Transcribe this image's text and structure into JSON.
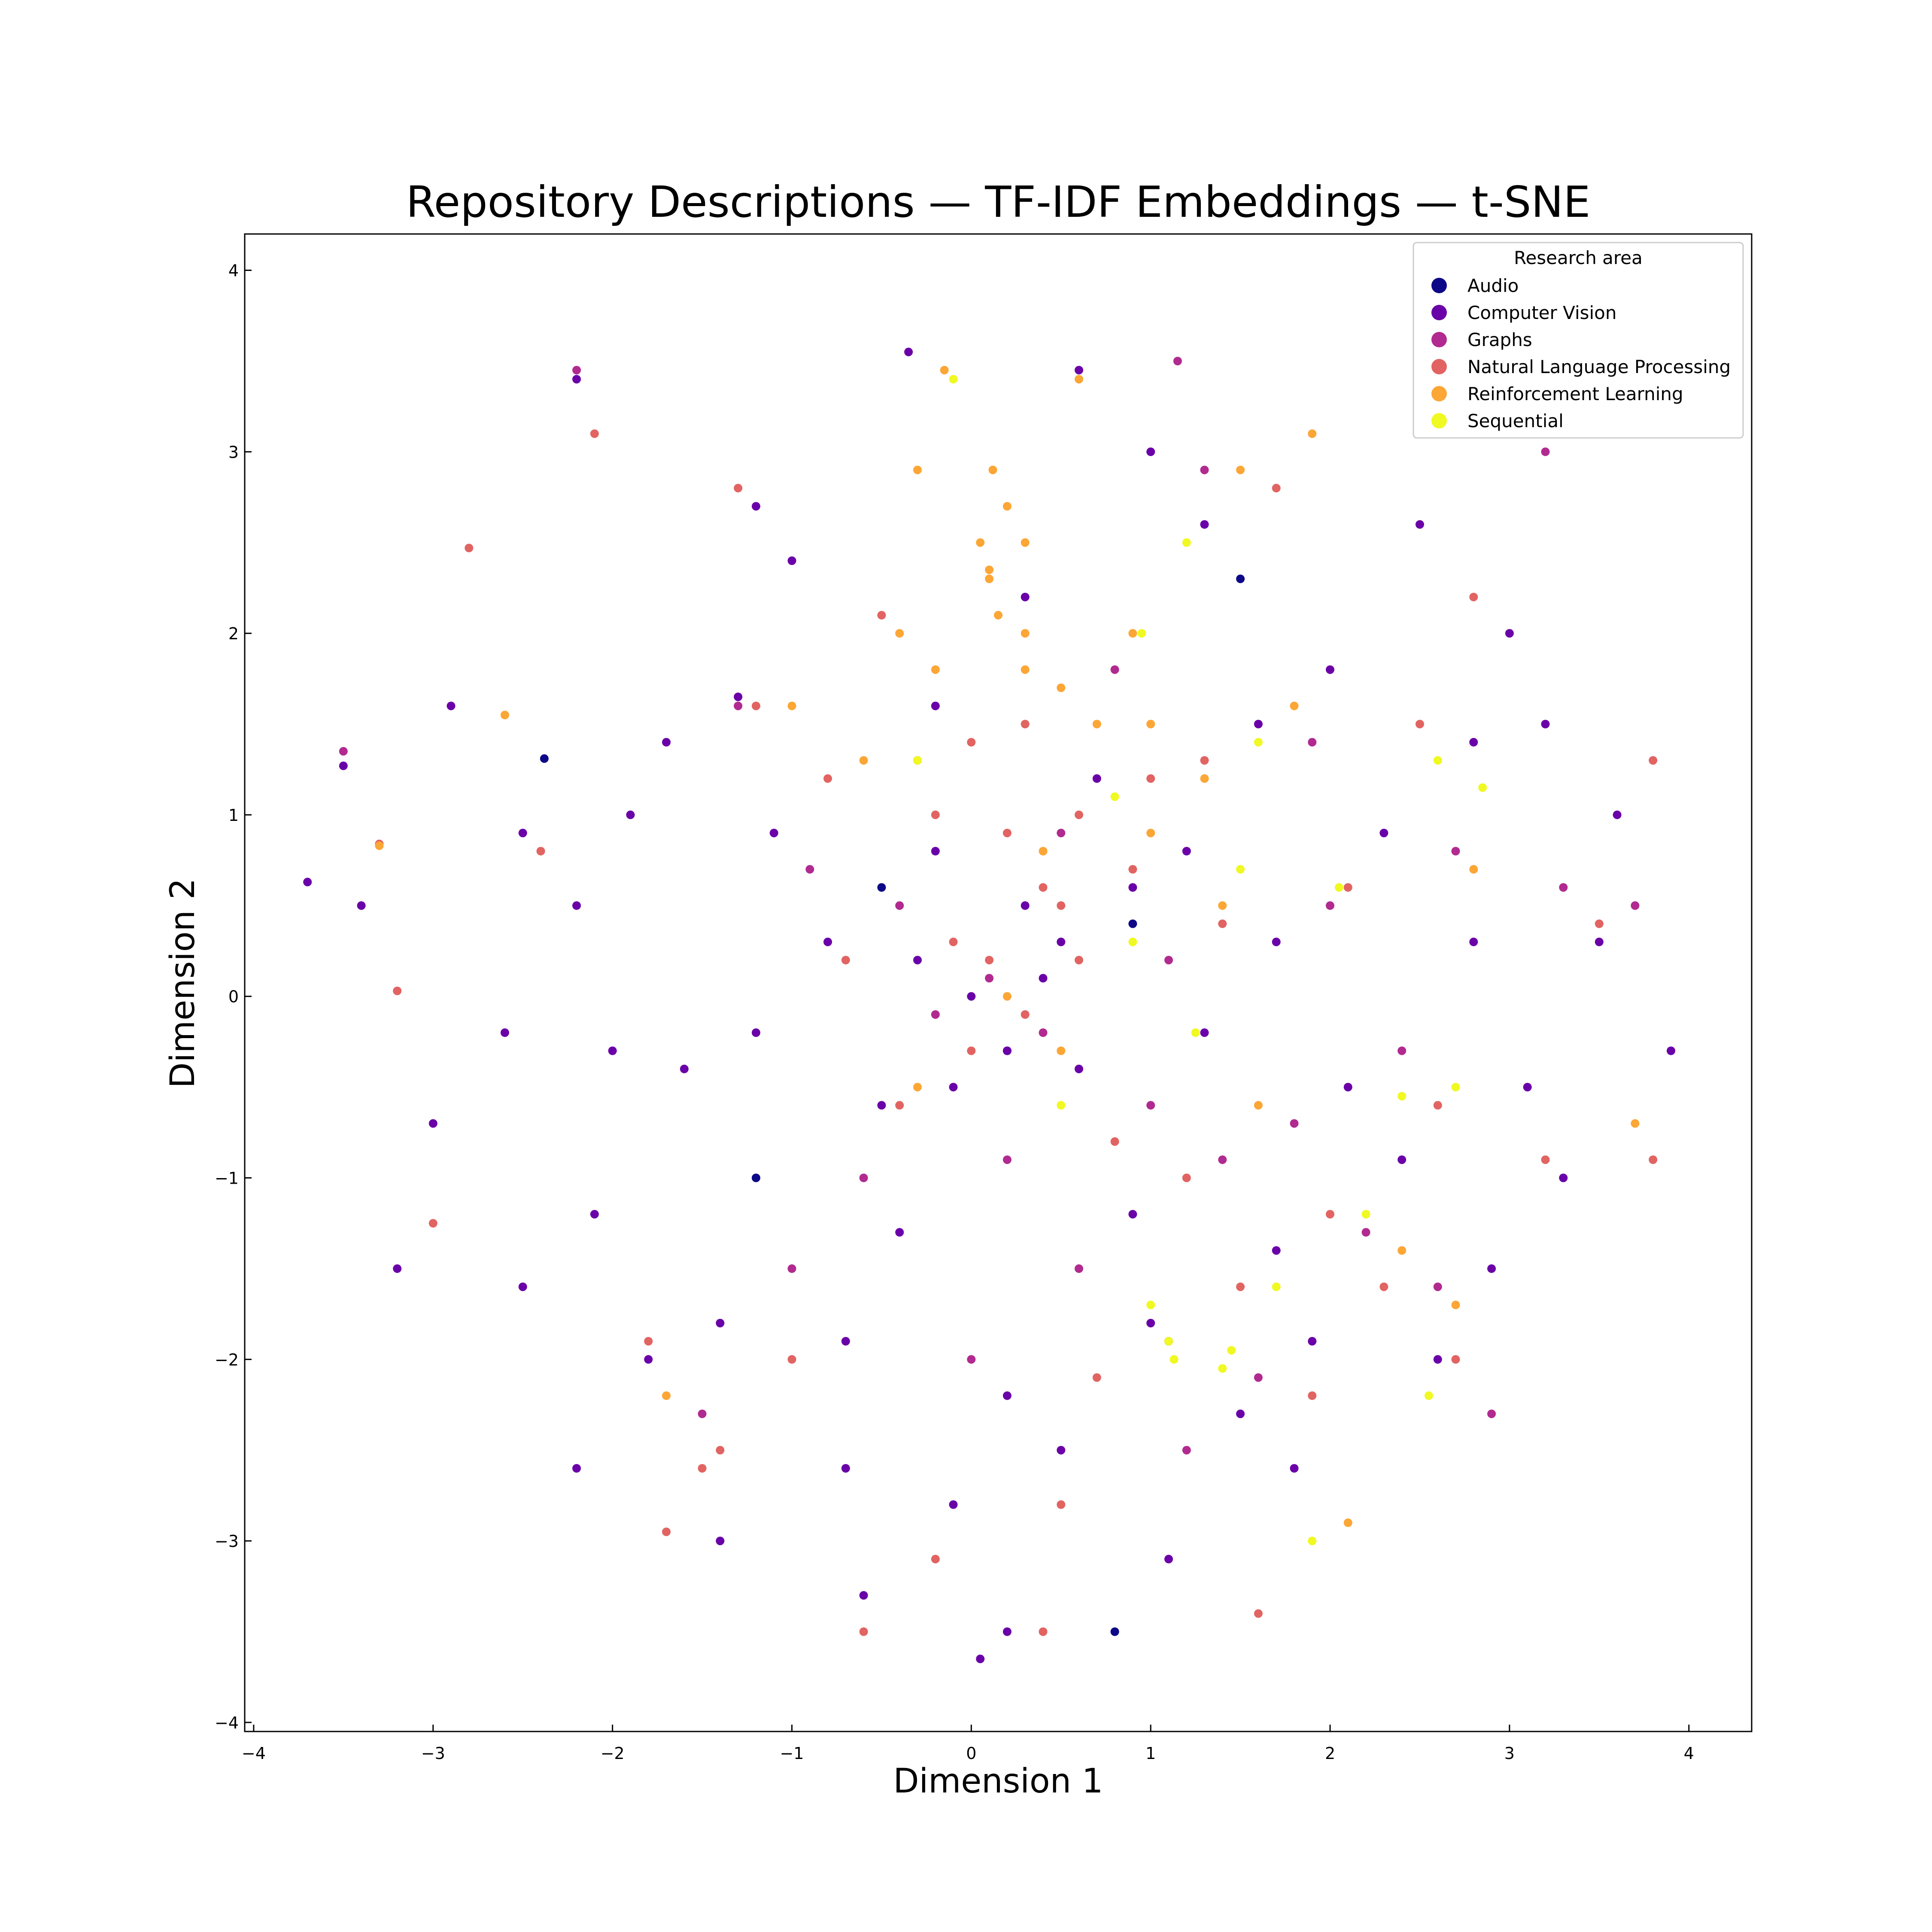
{
  "chart_data": {
    "type": "scatter",
    "title": "Repository Descriptions — TF-IDF Embeddings — t-SNE",
    "xlabel": "Dimension 1",
    "ylabel": "Dimension 2",
    "xlim": [
      -4.05,
      4.35
    ],
    "ylim": [
      -4.05,
      4.2
    ],
    "xticks": [
      -4,
      -3,
      -2,
      -1,
      0,
      1,
      2,
      3,
      4
    ],
    "yticks": [
      -4,
      -3,
      -2,
      -1,
      0,
      1,
      2,
      3,
      4
    ],
    "xtick_labels": [
      "−4",
      "−3",
      "−2",
      "−1",
      "0",
      "1",
      "2",
      "3",
      "4"
    ],
    "ytick_labels": [
      "−4",
      "−3",
      "−2",
      "−1",
      "0",
      "1",
      "2",
      "3",
      "4"
    ],
    "grid": false,
    "legend": {
      "title": "Research area",
      "placement": "top-right"
    },
    "series": [
      {
        "name": "Audio",
        "color": "#0d0887",
        "points": [
          [
            -2.38,
            1.31
          ],
          [
            0.2,
            -0.3
          ],
          [
            0.8,
            -3.5
          ],
          [
            1.1,
            -1.9
          ],
          [
            -0.5,
            0.6
          ],
          [
            0.9,
            0.4
          ],
          [
            1.5,
            2.3
          ],
          [
            -1.2,
            -1.0
          ]
        ]
      },
      {
        "name": "Computer Vision",
        "color": "#6a00a8",
        "points": [
          [
            0.0,
            0.0
          ],
          [
            0.2,
            -0.3
          ],
          [
            -0.3,
            0.2
          ],
          [
            0.4,
            0.1
          ],
          [
            -0.5,
            -0.6
          ],
          [
            0.6,
            -0.4
          ],
          [
            -0.8,
            0.3
          ],
          [
            0.9,
            0.6
          ],
          [
            -1.2,
            -0.2
          ],
          [
            1.3,
            -0.2
          ],
          [
            -1.6,
            -0.4
          ],
          [
            1.7,
            0.3
          ],
          [
            -2.0,
            -0.3
          ],
          [
            2.1,
            -0.5
          ],
          [
            -2.1,
            -1.2
          ],
          [
            -1.4,
            -1.8
          ],
          [
            -0.7,
            -1.9
          ],
          [
            0.2,
            -2.2
          ],
          [
            1.0,
            -1.8
          ],
          [
            1.7,
            -1.4
          ],
          [
            2.4,
            -0.9
          ],
          [
            2.8,
            0.3
          ],
          [
            3.1,
            -0.5
          ],
          [
            3.5,
            0.3
          ],
          [
            -2.6,
            -0.2
          ],
          [
            -3.0,
            -0.7
          ],
          [
            -3.4,
            0.5
          ],
          [
            -3.7,
            0.63
          ],
          [
            -3.5,
            1.27
          ],
          [
            -2.9,
            1.6
          ],
          [
            -2.2,
            0.5
          ],
          [
            -1.7,
            1.4
          ],
          [
            -1.3,
            1.65
          ],
          [
            -1.0,
            2.4
          ],
          [
            -1.2,
            2.7
          ],
          [
            -2.2,
            3.4
          ],
          [
            -0.35,
            3.55
          ],
          [
            0.6,
            3.45
          ],
          [
            1.0,
            3.0
          ],
          [
            0.3,
            2.2
          ],
          [
            1.3,
            2.6
          ],
          [
            2.0,
            1.8
          ],
          [
            2.8,
            1.4
          ],
          [
            3.2,
            1.5
          ],
          [
            3.6,
            1.0
          ],
          [
            3.9,
            -0.3
          ],
          [
            3.3,
            -1.0
          ],
          [
            2.6,
            -2.0
          ],
          [
            1.8,
            -2.6
          ],
          [
            1.1,
            -3.1
          ],
          [
            0.2,
            -3.5
          ],
          [
            -0.6,
            -3.3
          ],
          [
            -1.4,
            -3.0
          ],
          [
            -2.2,
            -2.6
          ],
          [
            -2.5,
            -1.6
          ],
          [
            -3.2,
            -1.5
          ],
          [
            0.05,
            -3.65
          ],
          [
            -0.1,
            -2.8
          ],
          [
            0.5,
            -2.5
          ],
          [
            -0.7,
            -2.6
          ],
          [
            1.5,
            -2.3
          ],
          [
            -1.1,
            0.9
          ],
          [
            0.7,
            1.2
          ],
          [
            -0.2,
            1.6
          ],
          [
            1.2,
            0.8
          ],
          [
            2.3,
            0.9
          ],
          [
            -2.5,
            0.9
          ],
          [
            0.5,
            0.3
          ],
          [
            -0.1,
            -0.5
          ],
          [
            0.3,
            0.5
          ],
          [
            1.9,
            -1.9
          ],
          [
            2.9,
            -1.5
          ],
          [
            -1.8,
            -2.0
          ],
          [
            0.9,
            -1.2
          ],
          [
            -0.4,
            -1.3
          ],
          [
            2.5,
            2.6
          ],
          [
            3.0,
            2.0
          ],
          [
            -0.2,
            0.8
          ],
          [
            1.6,
            1.5
          ],
          [
            -1.9,
            1.0
          ]
        ]
      },
      {
        "name": "Graphs",
        "color": "#b12a90",
        "points": [
          [
            0.1,
            0.1
          ],
          [
            0.4,
            -0.2
          ],
          [
            -0.2,
            -0.1
          ],
          [
            1.0,
            -0.6
          ],
          [
            1.4,
            -0.9
          ],
          [
            1.8,
            -0.7
          ],
          [
            2.2,
            -1.3
          ],
          [
            2.6,
            -1.6
          ],
          [
            1.6,
            -2.1
          ],
          [
            1.2,
            -2.5
          ],
          [
            2.0,
            0.5
          ],
          [
            2.7,
            0.8
          ],
          [
            3.3,
            0.6
          ],
          [
            3.7,
            0.5
          ],
          [
            -0.6,
            -1.0
          ],
          [
            -1.0,
            -1.5
          ],
          [
            -1.5,
            -2.3
          ],
          [
            0.6,
            -1.5
          ],
          [
            -0.3,
            1.3
          ],
          [
            0.8,
            1.8
          ],
          [
            1.3,
            2.9
          ],
          [
            1.9,
            1.4
          ],
          [
            -1.3,
            1.6
          ],
          [
            -2.2,
            3.45
          ],
          [
            -3.5,
            1.35
          ],
          [
            3.2,
            3.0
          ],
          [
            1.15,
            3.5
          ],
          [
            0.5,
            0.9
          ],
          [
            -0.9,
            0.7
          ],
          [
            1.1,
            0.2
          ],
          [
            2.4,
            -0.3
          ],
          [
            0.2,
            -0.9
          ],
          [
            -0.4,
            0.5
          ],
          [
            2.9,
            -2.3
          ],
          [
            0.0,
            -2.0
          ]
        ]
      },
      {
        "name": "Natural Language Processing",
        "color": "#e16462",
        "points": [
          [
            0.1,
            0.2
          ],
          [
            0.3,
            -0.1
          ],
          [
            -0.1,
            0.3
          ],
          [
            0.5,
            0.5
          ],
          [
            0.2,
            0.9
          ],
          [
            0.6,
            1.0
          ],
          [
            -0.2,
            1.0
          ],
          [
            1.0,
            1.2
          ],
          [
            0.0,
            1.4
          ],
          [
            0.6,
            0.2
          ],
          [
            -0.4,
            -0.6
          ],
          [
            0.8,
            -0.8
          ],
          [
            1.2,
            -1.0
          ],
          [
            1.5,
            -1.6
          ],
          [
            2.0,
            -1.2
          ],
          [
            2.3,
            -1.6
          ],
          [
            -1.4,
            -2.5
          ],
          [
            -1.5,
            -2.6
          ],
          [
            -1.7,
            -2.95
          ],
          [
            -2.1,
            3.1
          ],
          [
            -2.8,
            2.47
          ],
          [
            -3.3,
            0.84
          ],
          [
            -3.2,
            0.03
          ],
          [
            -3.0,
            -1.25
          ],
          [
            0.4,
            -3.5
          ],
          [
            -0.6,
            -3.5
          ],
          [
            1.6,
            -3.4
          ],
          [
            3.8,
            1.3
          ],
          [
            3.8,
            -0.9
          ],
          [
            2.8,
            2.2
          ],
          [
            1.7,
            2.8
          ],
          [
            2.5,
            1.5
          ],
          [
            0.9,
            0.7
          ],
          [
            1.4,
            0.4
          ],
          [
            -0.7,
            0.2
          ],
          [
            -0.8,
            1.2
          ],
          [
            -1.2,
            1.6
          ],
          [
            -1.3,
            2.8
          ],
          [
            0.3,
            1.5
          ],
          [
            1.3,
            1.3
          ],
          [
            2.1,
            0.6
          ],
          [
            2.6,
            -0.6
          ],
          [
            3.2,
            -0.9
          ],
          [
            0.7,
            -2.1
          ],
          [
            0.5,
            -2.8
          ],
          [
            -0.2,
            -3.1
          ],
          [
            -1.0,
            -2.0
          ],
          [
            -1.8,
            -1.9
          ],
          [
            -2.4,
            0.8
          ],
          [
            -0.5,
            2.1
          ],
          [
            0.4,
            0.6
          ],
          [
            0.0,
            -0.3
          ],
          [
            2.7,
            -2.0
          ],
          [
            1.9,
            -2.2
          ],
          [
            3.5,
            0.4
          ]
        ]
      },
      {
        "name": "Reinforcement Learning",
        "color": "#fca636",
        "points": [
          [
            0.1,
            2.3
          ],
          [
            0.15,
            2.1
          ],
          [
            0.05,
            2.5
          ],
          [
            0.2,
            2.7
          ],
          [
            0.12,
            2.9
          ],
          [
            -0.4,
            2.0
          ],
          [
            0.3,
            2.0
          ],
          [
            0.5,
            1.7
          ],
          [
            -0.2,
            1.8
          ],
          [
            0.7,
            1.5
          ],
          [
            -0.6,
            1.3
          ],
          [
            1.0,
            1.5
          ],
          [
            1.3,
            1.2
          ],
          [
            1.0,
            0.9
          ],
          [
            0.4,
            0.8
          ],
          [
            -0.3,
            -0.5
          ],
          [
            0.2,
            0.0
          ],
          [
            0.5,
            -0.3
          ],
          [
            -0.15,
            3.45
          ],
          [
            0.6,
            3.4
          ],
          [
            1.5,
            2.9
          ],
          [
            1.9,
            3.1
          ],
          [
            2.8,
            0.7
          ],
          [
            3.7,
            -0.7
          ],
          [
            2.7,
            -1.7
          ],
          [
            2.1,
            -2.9
          ],
          [
            -1.7,
            -2.2
          ],
          [
            -3.3,
            0.83
          ],
          [
            -2.6,
            1.55
          ],
          [
            -0.3,
            2.9
          ],
          [
            0.1,
            2.35
          ],
          [
            0.3,
            2.5
          ],
          [
            1.4,
            0.5
          ],
          [
            0.9,
            2.0
          ],
          [
            -1.0,
            1.6
          ],
          [
            1.6,
            -0.6
          ],
          [
            2.4,
            -1.4
          ],
          [
            0.3,
            1.8
          ],
          [
            1.8,
            1.6
          ]
        ]
      },
      {
        "name": "Sequential",
        "color": "#f0f921",
        "points": [
          [
            -0.1,
            3.4
          ],
          [
            1.1,
            -1.9
          ],
          [
            1.13,
            -2.0
          ],
          [
            1.4,
            -2.05
          ],
          [
            1.45,
            -1.95
          ],
          [
            1.7,
            -1.6
          ],
          [
            2.55,
            -2.2
          ],
          [
            1.9,
            -3.0
          ],
          [
            1.0,
            -1.7
          ],
          [
            2.2,
            -1.2
          ],
          [
            2.4,
            -0.55
          ],
          [
            2.6,
            1.3
          ],
          [
            2.85,
            1.15
          ],
          [
            1.2,
            2.5
          ],
          [
            0.95,
            2.0
          ],
          [
            0.8,
            1.1
          ],
          [
            1.6,
            1.4
          ],
          [
            1.5,
            0.7
          ],
          [
            2.05,
            0.6
          ],
          [
            0.5,
            -0.6
          ],
          [
            -0.3,
            1.3
          ],
          [
            0.9,
            0.3
          ],
          [
            1.25,
            -0.2
          ],
          [
            2.7,
            -0.5
          ]
        ]
      }
    ]
  }
}
